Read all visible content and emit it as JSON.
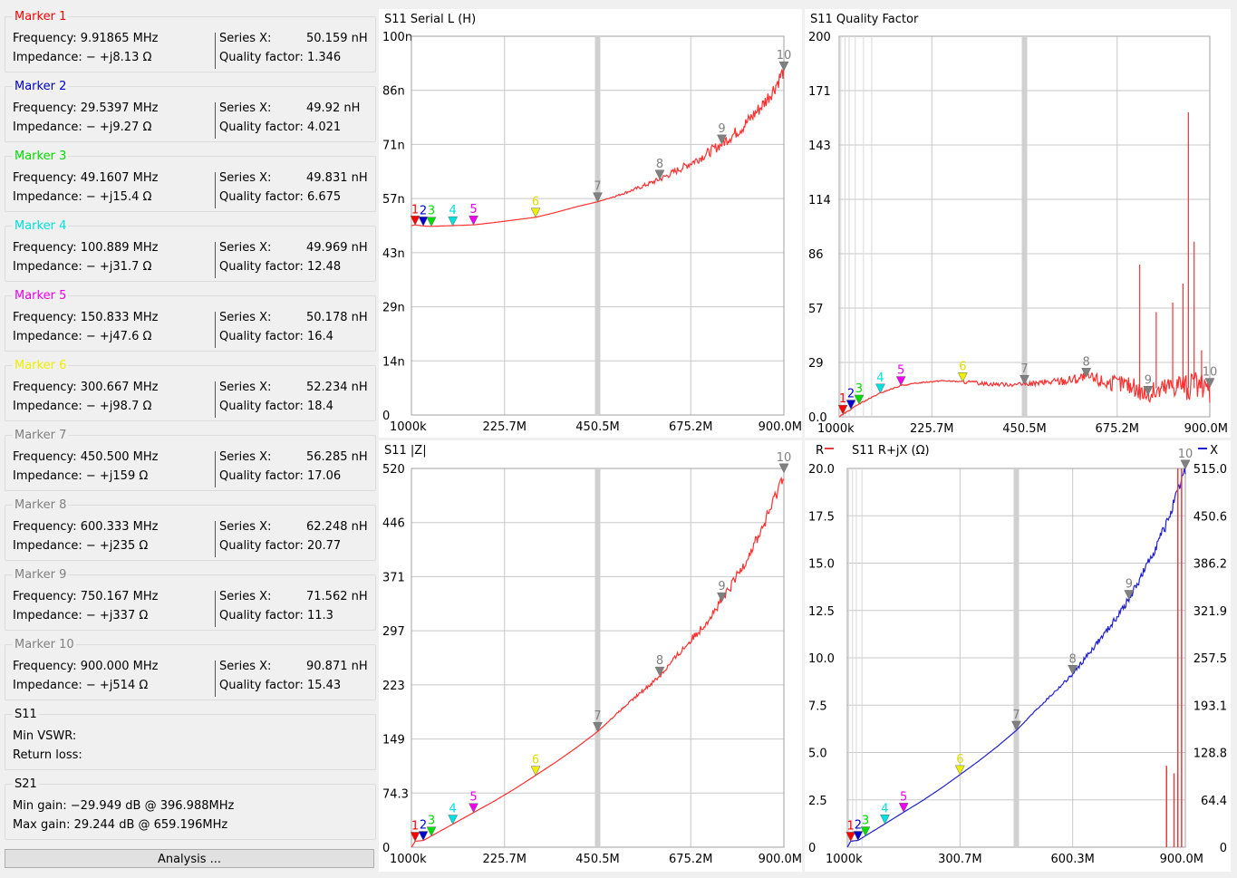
{
  "markers": [
    {
      "title": "Marker 1",
      "color": "#ff0000",
      "frequency": "9.91865 MHz",
      "impedance": "−   +j8.13 Ω",
      "series_x": "50.159",
      "series_x_unit": "nH",
      "quality": "1.346"
    },
    {
      "title": "Marker 2",
      "color": "#0000cc",
      "frequency": "29.5397 MHz",
      "impedance": "−   +j9.27 Ω",
      "series_x": "49.92",
      "series_x_unit": "nH",
      "quality": "4.021"
    },
    {
      "title": "Marker 3",
      "color": "#00dd00",
      "frequency": "49.1607 MHz",
      "impedance": "−   +j15.4 Ω",
      "series_x": "49.831",
      "series_x_unit": "nH",
      "quality": "6.675"
    },
    {
      "title": "Marker 4",
      "color": "#00e0e0",
      "frequency": "100.889 MHz",
      "impedance": "−   +j31.7 Ω",
      "series_x": "49.969",
      "series_x_unit": "nH",
      "quality": "12.48"
    },
    {
      "title": "Marker 5",
      "color": "#ee00ee",
      "frequency": "150.833 MHz",
      "impedance": "−   +j47.6 Ω",
      "series_x": "50.178",
      "series_x_unit": "nH",
      "quality": "16.4"
    },
    {
      "title": "Marker 6",
      "color": "#eeee00",
      "frequency": "300.667 MHz",
      "impedance": "−   +j98.7 Ω",
      "series_x": "52.234",
      "series_x_unit": "nH",
      "quality": "18.4"
    },
    {
      "title": "Marker 7",
      "color": "#808080",
      "frequency": "450.500 MHz",
      "impedance": "−   +j159 Ω",
      "series_x": "56.285",
      "series_x_unit": "nH",
      "quality": "17.06"
    },
    {
      "title": "Marker 8",
      "color": "#808080",
      "frequency": "600.333 MHz",
      "impedance": "−   +j235 Ω",
      "series_x": "62.248",
      "series_x_unit": "nH",
      "quality": "20.77"
    },
    {
      "title": "Marker 9",
      "color": "#808080",
      "frequency": "750.167 MHz",
      "impedance": "−   +j337 Ω",
      "series_x": "71.562",
      "series_x_unit": "nH",
      "quality": "11.3"
    },
    {
      "title": "Marker 10",
      "color": "#808080",
      "frequency": "900.000 MHz",
      "impedance": "−   +j514 Ω",
      "series_x": "90.871",
      "series_x_unit": "nH",
      "quality": "15.43"
    }
  ],
  "labels": {
    "frequency": "Frequency:",
    "impedance": "Impedance:",
    "series_x": "Series X:",
    "quality": "Quality factor:"
  },
  "s11_group": {
    "title": "S11",
    "min_vswr_label": "Min VSWR:",
    "return_loss_label": "Return loss:"
  },
  "s21_group": {
    "title": "S21",
    "min_gain": "Min gain:  −29.949 dB @ 396.988MHz",
    "max_gain": "Max gain: 29.244 dB @ 659.196MHz"
  },
  "analysis_button": "Analysis ...",
  "chart_data": [
    {
      "type": "line",
      "title": "S11  Serial L (H)",
      "x_range_hz": [
        1000000,
        900000000
      ],
      "x_tick_labels": [
        "1000k",
        "225.7M",
        "450.5M",
        "675.2M",
        "900.0M"
      ],
      "y_range": [
        0,
        100
      ],
      "y_tick_labels": [
        "0",
        "14n",
        "29n",
        "43n",
        "57n",
        "71n",
        "86n",
        "100n"
      ],
      "grid": true,
      "series": [
        {
          "color": "#ff3030",
          "x_mhz": [
            1,
            10,
            30,
            49,
            101,
            151,
            200,
            250,
            301,
            350,
            400,
            451,
            500,
            550,
            600,
            650,
            700,
            750,
            800,
            850,
            875,
            900
          ],
          "y": [
            50,
            50.2,
            49.9,
            49.8,
            50,
            50.2,
            50.8,
            51.5,
            52.2,
            53.5,
            55,
            56.3,
            58,
            60,
            62.2,
            65,
            68,
            71.6,
            76,
            82,
            86,
            91
          ]
        }
      ],
      "markers": [
        {
          "label": "1",
          "x_mhz": 9.92,
          "y": 50.16,
          "color": "#ff0000"
        },
        {
          "label": "2",
          "x_mhz": 29.54,
          "y": 49.92,
          "color": "#0000cc"
        },
        {
          "label": "3",
          "x_mhz": 49.16,
          "y": 49.83,
          "color": "#00dd00"
        },
        {
          "label": "4",
          "x_mhz": 100.89,
          "y": 49.97,
          "color": "#00e0e0"
        },
        {
          "label": "5",
          "x_mhz": 150.83,
          "y": 50.18,
          "color": "#ee00ee"
        },
        {
          "label": "6",
          "x_mhz": 300.67,
          "y": 52.23,
          "color": "#eeee00"
        },
        {
          "label": "7",
          "x_mhz": 450.5,
          "y": 56.29,
          "color": "#808080"
        },
        {
          "label": "8",
          "x_mhz": 600.33,
          "y": 62.25,
          "color": "#808080"
        },
        {
          "label": "9",
          "x_mhz": 750.17,
          "y": 71.56,
          "color": "#808080"
        },
        {
          "label": "10",
          "x_mhz": 900,
          "y": 90.87,
          "color": "#808080"
        }
      ],
      "highlight_x_mhz": [
        450.5
      ]
    },
    {
      "type": "line",
      "title": "S11  Quality Factor",
      "x_range_hz": [
        1000000,
        900000000
      ],
      "x_tick_labels": [
        "1000k",
        "225.7M",
        "450.5M",
        "675.2M",
        "900.0M"
      ],
      "y_range": [
        0,
        200
      ],
      "y_tick_labels": [
        "0.0",
        "29",
        "57",
        "86",
        "114",
        "143",
        "171",
        "200"
      ],
      "grid": true,
      "series": [
        {
          "color": "#ff3030",
          "x_mhz": [
            1,
            10,
            30,
            49,
            101,
            151,
            200,
            250,
            301,
            350,
            400,
            451,
            500,
            550,
            600,
            650,
            700,
            750,
            780,
            800,
            830,
            850,
            860,
            880,
            900
          ],
          "y": [
            0,
            1.3,
            4,
            6.7,
            12.5,
            16.4,
            18,
            19,
            18.4,
            17.5,
            17,
            17.1,
            18,
            19,
            20.8,
            18,
            17,
            11.3,
            14,
            16,
            18,
            15,
            17,
            14,
            15.4
          ]
        }
      ],
      "spikes": [
        {
          "x_mhz": 730,
          "y": 80
        },
        {
          "x_mhz": 770,
          "y": 55
        },
        {
          "x_mhz": 810,
          "y": 60
        },
        {
          "x_mhz": 835,
          "y": 70
        },
        {
          "x_mhz": 848,
          "y": 160
        },
        {
          "x_mhz": 862,
          "y": 92
        },
        {
          "x_mhz": 880,
          "y": 35
        }
      ],
      "markers": [
        {
          "label": "1",
          "x_mhz": 9.92,
          "y": 1.35,
          "color": "#ff0000"
        },
        {
          "label": "2",
          "x_mhz": 29.54,
          "y": 4.02,
          "color": "#0000cc"
        },
        {
          "label": "3",
          "x_mhz": 49.16,
          "y": 6.68,
          "color": "#00dd00"
        },
        {
          "label": "4",
          "x_mhz": 100.89,
          "y": 12.48,
          "color": "#00e0e0"
        },
        {
          "label": "5",
          "x_mhz": 150.83,
          "y": 16.4,
          "color": "#ee00ee"
        },
        {
          "label": "6",
          "x_mhz": 300.67,
          "y": 18.4,
          "color": "#eeee00"
        },
        {
          "label": "7",
          "x_mhz": 450.5,
          "y": 17.06,
          "color": "#808080"
        },
        {
          "label": "8",
          "x_mhz": 600.33,
          "y": 20.77,
          "color": "#808080"
        },
        {
          "label": "9",
          "x_mhz": 750.17,
          "y": 11.3,
          "color": "#808080"
        },
        {
          "label": "10",
          "x_mhz": 900,
          "y": 15.43,
          "color": "#808080"
        }
      ],
      "highlight_x_mhz": [
        450.5
      ],
      "vertical_lines_x_mhz": [
        5,
        15,
        25,
        40,
        60,
        80
      ]
    },
    {
      "type": "line",
      "title": "S11  |Z|",
      "x_range_hz": [
        1000000,
        900000000
      ],
      "x_tick_labels": [
        "1000k",
        "225.7M",
        "450.5M",
        "675.2M",
        "900.0M"
      ],
      "y_range": [
        0,
        520
      ],
      "y_tick_labels": [
        "0",
        "74.3",
        "149",
        "223",
        "297",
        "371",
        "446",
        "520"
      ],
      "grid": true,
      "series": [
        {
          "color": "#ff3030",
          "x_mhz": [
            1,
            10,
            30,
            49,
            101,
            151,
            200,
            250,
            301,
            350,
            400,
            451,
            500,
            550,
            600,
            650,
            700,
            750,
            800,
            850,
            875,
            900
          ],
          "y": [
            0,
            8.1,
            9.3,
            15.4,
            31.7,
            47.6,
            63,
            80,
            98.7,
            117,
            137,
            159,
            185,
            210,
            235,
            268,
            300,
            337,
            385,
            440,
            475,
            514
          ]
        }
      ],
      "markers": [
        {
          "label": "1",
          "x_mhz": 9.92,
          "y": 8.13,
          "color": "#ff0000"
        },
        {
          "label": "2",
          "x_mhz": 29.54,
          "y": 9.27,
          "color": "#0000cc"
        },
        {
          "label": "3",
          "x_mhz": 49.16,
          "y": 15.4,
          "color": "#00dd00"
        },
        {
          "label": "4",
          "x_mhz": 100.89,
          "y": 31.7,
          "color": "#00e0e0"
        },
        {
          "label": "5",
          "x_mhz": 150.83,
          "y": 47.6,
          "color": "#ee00ee"
        },
        {
          "label": "6",
          "x_mhz": 300.67,
          "y": 98.7,
          "color": "#eeee00"
        },
        {
          "label": "7",
          "x_mhz": 450.5,
          "y": 159,
          "color": "#808080"
        },
        {
          "label": "8",
          "x_mhz": 600.33,
          "y": 235,
          "color": "#808080"
        },
        {
          "label": "9",
          "x_mhz": 750.17,
          "y": 337,
          "color": "#808080"
        },
        {
          "label": "10",
          "x_mhz": 900,
          "y": 514,
          "color": "#808080"
        }
      ],
      "highlight_x_mhz": [
        450.5
      ]
    },
    {
      "type": "line",
      "title": "S11  R+jX (Ω)",
      "legend_left": "R",
      "legend_right": "X",
      "x_range_hz": [
        1000000,
        900000000
      ],
      "x_tick_labels": [
        "1000k",
        "300.7M",
        "600.3M",
        "900.0M"
      ],
      "y_left_range": [
        0,
        20
      ],
      "y_left_tick_labels": [
        "0",
        "2.5",
        "5.0",
        "7.5",
        "10.0",
        "12.5",
        "15.0",
        "17.5",
        "20.0"
      ],
      "y_right_range": [
        0,
        515
      ],
      "y_right_tick_labels": [
        "0",
        "64.4",
        "128.8",
        "193.1",
        "257.5",
        "321.9",
        "386.2",
        "450.6",
        "515.0"
      ],
      "grid": true,
      "series": [
        {
          "name": "X",
          "axis": "right",
          "color": "#2020d0",
          "x_mhz": [
            1,
            10,
            30,
            49,
            101,
            151,
            200,
            250,
            301,
            350,
            400,
            451,
            500,
            550,
            600,
            650,
            700,
            750,
            800,
            850,
            875,
            900
          ],
          "y": [
            0,
            8.1,
            9.3,
            15.4,
            31.7,
            47.6,
            63,
            80,
            98.7,
            117,
            137,
            159,
            185,
            210,
            235,
            268,
            300,
            337,
            385,
            440,
            475,
            514
          ]
        },
        {
          "name": "R",
          "axis": "left",
          "color": "#e04040",
          "spikes": [
            {
              "x_mhz": 850,
              "y": 4.3
            },
            {
              "x_mhz": 870,
              "y": 3.9
            },
            {
              "x_mhz": 880,
              "y": 20
            },
            {
              "x_mhz": 890,
              "y": 20
            }
          ]
        }
      ],
      "markers": [
        {
          "label": "1",
          "x_mhz": 9.92,
          "y": 8.13,
          "color": "#ff0000"
        },
        {
          "label": "2",
          "x_mhz": 29.54,
          "y": 9.27,
          "color": "#0000cc"
        },
        {
          "label": "3",
          "x_mhz": 49.16,
          "y": 15.4,
          "color": "#00dd00"
        },
        {
          "label": "4",
          "x_mhz": 100.89,
          "y": 31.7,
          "color": "#00e0e0"
        },
        {
          "label": "5",
          "x_mhz": 150.83,
          "y": 47.6,
          "color": "#ee00ee"
        },
        {
          "label": "6",
          "x_mhz": 300.67,
          "y": 98.7,
          "color": "#eeee00"
        },
        {
          "label": "7",
          "x_mhz": 450.5,
          "y": 159,
          "color": "#808080"
        },
        {
          "label": "8",
          "x_mhz": 600.33,
          "y": 235,
          "color": "#808080"
        },
        {
          "label": "9",
          "x_mhz": 750.17,
          "y": 337,
          "color": "#808080"
        },
        {
          "label": "10",
          "x_mhz": 900,
          "y": 514,
          "color": "#808080"
        }
      ],
      "highlight_x_mhz": [
        450.5
      ],
      "vertical_lines_x_mhz": [
        5,
        15,
        25,
        40
      ]
    }
  ]
}
